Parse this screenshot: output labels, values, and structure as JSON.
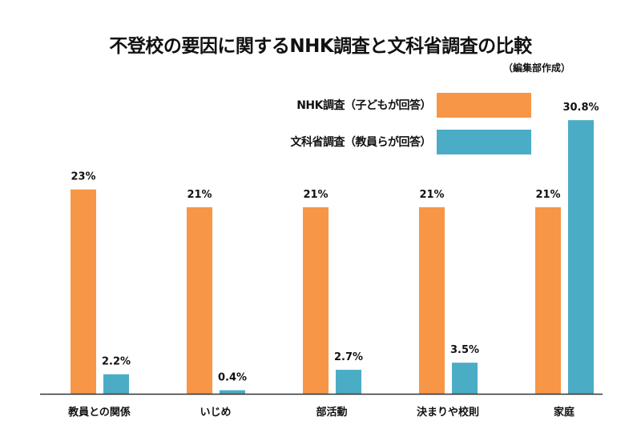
{
  "chart_data": {
    "type": "bar",
    "title": "不登校の要因に関するNHK調査と文科省調査の比較",
    "subtitle": "（編集部作成）",
    "categories": [
      "教員との関係",
      "いじめ",
      "部活動",
      "決まりや校則",
      "家庭"
    ],
    "series": [
      {
        "name": "NHK調査（子どもが回答）",
        "values": [
          23,
          21,
          21,
          21,
          21
        ],
        "labels": [
          "23%",
          "21%",
          "21%",
          "21%",
          "21%"
        ],
        "color": "#F79646"
      },
      {
        "name": "文科省調査（教員らが回答）",
        "values": [
          2.2,
          0.4,
          2.7,
          3.5,
          30.8
        ],
        "labels": [
          "2.2%",
          "0.4%",
          "2.7%",
          "3.5%",
          "30.8%"
        ],
        "color": "#4BACC6"
      }
    ],
    "unit": "%",
    "ylim": [
      0,
      31
    ],
    "grid": false,
    "legend_placement": "top-right"
  }
}
